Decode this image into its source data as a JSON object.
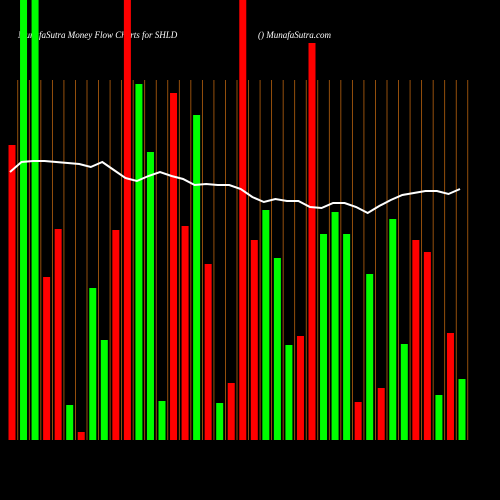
{
  "chart_data": {
    "type": "bar",
    "title": "MunafaSutra  Money Flow  Charts for SHLD",
    "subtitle": "() MunafaSutra.com",
    "ylim": [
      0,
      440
    ],
    "grid": true,
    "series": [
      {
        "name": "Money Flow",
        "colors": [
          "#ff0000",
          "#00ff00",
          "#00ff00",
          "#ff0000",
          "#ff0000",
          "#00ff00",
          "#ff0000",
          "#00ff00",
          "#00ff00",
          "#ff0000",
          "#ff0000",
          "#00ff00",
          "#00ff00",
          "#00ff00",
          "#ff0000",
          "#ff0000",
          "#00ff00",
          "#ff0000",
          "#00ff00",
          "#ff0000",
          "#ff0000",
          "#ff0000",
          "#00ff00",
          "#00ff00",
          "#00ff00",
          "#ff0000",
          "#ff0000",
          "#00ff00",
          "#00ff00",
          "#00ff00",
          "#ff0000",
          "#00ff00",
          "#ff0000",
          "#00ff00",
          "#00ff00",
          "#ff0000",
          "#ff0000",
          "#00ff00",
          "#ff0000",
          "#00ff00"
        ],
        "values": [
          295,
          440,
          440,
          163,
          211,
          35,
          8,
          152,
          100,
          210,
          440,
          356,
          288,
          39,
          347,
          214,
          325,
          176,
          37,
          57,
          440,
          200,
          230,
          182,
          95,
          104,
          397,
          206,
          228,
          206,
          38,
          166,
          52,
          221,
          96,
          200,
          188,
          45,
          107,
          61
        ]
      },
      {
        "name": "Average",
        "color": "#ffffff",
        "values": [
          268,
          278,
          279,
          279,
          278,
          277,
          276,
          273,
          278,
          270,
          262,
          259,
          264,
          268,
          264,
          261,
          255,
          256,
          255,
          255,
          251,
          243,
          238,
          241,
          239,
          239,
          233,
          232,
          237,
          237,
          233,
          227,
          234,
          240,
          245,
          247,
          249,
          249,
          246,
          251
        ]
      }
    ]
  }
}
